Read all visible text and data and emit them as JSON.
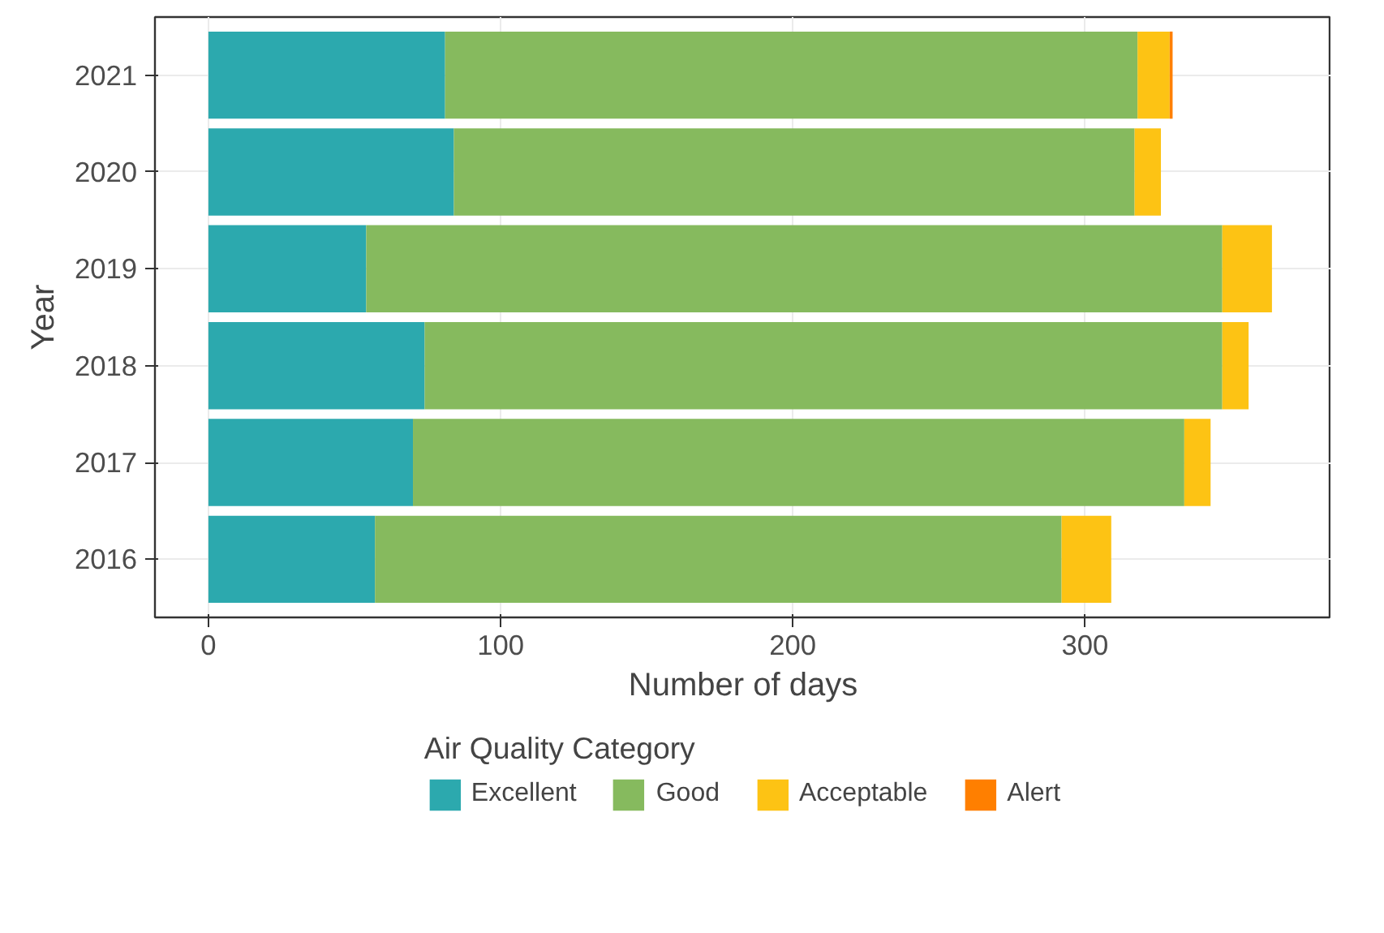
{
  "chart_data": {
    "type": "bar",
    "orientation": "horizontal",
    "stacked": true,
    "xlabel": "Number of days",
    "ylabel": "Year",
    "legend_title": "Air Quality Category",
    "legend": "bottom",
    "grid": true,
    "categories": [
      "2021",
      "2020",
      "2019",
      "2018",
      "2017",
      "2016"
    ],
    "xlim": [
      -18.3,
      384.3
    ],
    "xticks": [
      0,
      100,
      200,
      300
    ],
    "series": [
      {
        "name": "Excellent",
        "color": "#2ca9ae",
        "values": [
          81,
          84,
          54,
          74,
          70,
          57
        ]
      },
      {
        "name": "Good",
        "color": "#86ba5e",
        "values": [
          237,
          233,
          293,
          273,
          264,
          235
        ]
      },
      {
        "name": "Acceptable",
        "color": "#fdc314",
        "values": [
          11,
          9,
          17,
          9,
          9,
          17
        ]
      },
      {
        "name": "Alert",
        "color": "#ff7f00",
        "values": [
          1,
          0,
          0,
          0,
          0,
          0
        ]
      }
    ]
  }
}
